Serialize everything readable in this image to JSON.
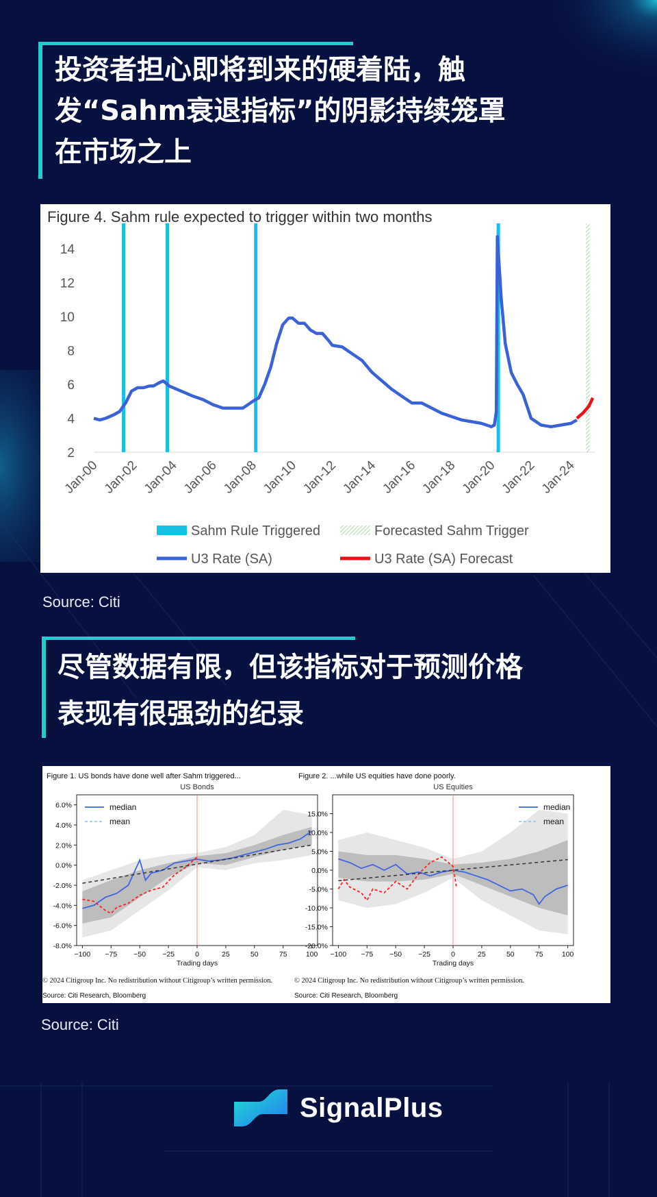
{
  "section1": {
    "title_lines": [
      "投资者担心即将到来的硬着陆，触",
      "发“Sahm衰退指标”的阴影持续笼罩",
      "在市场之上"
    ]
  },
  "section2": {
    "title_lines": [
      "尽管数据有限，但该指标对于预测价格",
      "表现有很强劲的纪录"
    ]
  },
  "source1": "Source: Citi",
  "source2": "Source: Citi",
  "brand": {
    "name": "SignalPlus"
  },
  "colors": {
    "background": "#071140",
    "accent": "#25c9d0",
    "u3": "#3a62d6",
    "forecast": "#e8101a",
    "trigger": "#19c0e6"
  },
  "chart_data": [
    {
      "type": "line",
      "title": "Figure 4. Sahm rule expected to trigger within two months",
      "ylim": [
        2,
        15
      ],
      "yticks": [
        2,
        4,
        6,
        8,
        10,
        12,
        14
      ],
      "xlim": [
        2000.0,
        2025.2
      ],
      "xticks": [
        "Jan-00",
        "Jan-02",
        "Jan-04",
        "Jan-06",
        "Jan-08",
        "Jan-10",
        "Jan-12",
        "Jan-14",
        "Jan-16",
        "Jan-18",
        "Jan-20",
        "Jan-22",
        "Jan-24"
      ],
      "sahm_triggered": [
        2001.5,
        2003.7,
        2008.15,
        2020.35
      ],
      "forecasted_trigger": 2024.85,
      "legend": {
        "triggered": "Sahm Rule Triggered",
        "forecast_trigger": "Forecasted Sahm Trigger",
        "u3": "U3 Rate (SA)",
        "u3_forecast": "U3 Rate (SA) Forecast"
      },
      "series": [
        {
          "name": "U3 Rate (SA)",
          "x": [
            2000.0,
            2000.3,
            2000.6,
            2001.0,
            2001.3,
            2001.6,
            2001.9,
            2002.2,
            2002.5,
            2002.8,
            2003.0,
            2003.3,
            2003.5,
            2003.8,
            2004.2,
            2004.6,
            2005.0,
            2005.5,
            2006.0,
            2006.5,
            2007.0,
            2007.5,
            2008.0,
            2008.3,
            2008.6,
            2008.9,
            2009.2,
            2009.5,
            2009.8,
            2010.0,
            2010.3,
            2010.6,
            2010.9,
            2011.2,
            2011.5,
            2011.8,
            2012.0,
            2012.5,
            2013.0,
            2013.5,
            2014.0,
            2014.5,
            2015.0,
            2015.5,
            2016.0,
            2016.5,
            2017.0,
            2017.5,
            2018.0,
            2018.5,
            2019.0,
            2019.5,
            2020.0,
            2020.15,
            2020.25,
            2020.3,
            2020.5,
            2020.7,
            2021.0,
            2021.3,
            2021.6,
            2022.0,
            2022.5,
            2023.0,
            2023.5,
            2024.0,
            2024.3
          ],
          "y": [
            4.0,
            3.9,
            4.0,
            4.2,
            4.4,
            4.9,
            5.6,
            5.8,
            5.8,
            5.9,
            5.9,
            6.1,
            6.2,
            5.9,
            5.7,
            5.5,
            5.3,
            5.1,
            4.8,
            4.6,
            4.6,
            4.6,
            5.0,
            5.2,
            6.0,
            7.0,
            8.4,
            9.5,
            9.9,
            9.9,
            9.6,
            9.6,
            9.2,
            9.0,
            9.0,
            8.6,
            8.3,
            8.2,
            7.8,
            7.4,
            6.7,
            6.2,
            5.7,
            5.3,
            4.9,
            4.9,
            4.6,
            4.3,
            4.1,
            3.9,
            3.8,
            3.7,
            3.5,
            3.6,
            4.4,
            14.7,
            11.0,
            8.4,
            6.7,
            6.0,
            5.4,
            4.0,
            3.6,
            3.5,
            3.6,
            3.7,
            3.9
          ]
        },
        {
          "name": "U3 Rate (SA) Forecast",
          "x": [
            2024.3,
            2024.6,
            2024.9,
            2025.1
          ],
          "y": [
            4.0,
            4.3,
            4.7,
            5.2
          ]
        }
      ]
    },
    {
      "type": "line",
      "title": "Figure 1. US bonds have done well after Sahm triggered...",
      "subtitle": "US Bonds",
      "xlabel": "Trading days",
      "xlim": [
        -105,
        105
      ],
      "ylim": [
        -8,
        7
      ],
      "xticks": [
        -100,
        -75,
        -50,
        -25,
        0,
        25,
        50,
        75,
        100
      ],
      "yticks": [
        "6.0%",
        "4.0%",
        "2.0%",
        "0.0%",
        "-2.0%",
        "-4.0%",
        "-6.0%",
        "-8.0%"
      ],
      "ytick_values": [
        6,
        4,
        2,
        0,
        -2,
        -4,
        -6,
        -8
      ],
      "legend": [
        "median",
        "mean"
      ],
      "copyright": "© 2024 Citigroup Inc. No redistribution without Citigroup’s written permission.",
      "source": "Source: Citi Research, Bloomberg",
      "series": [
        {
          "name": "median",
          "x": [
            -100,
            -90,
            -80,
            -70,
            -60,
            -50,
            -45,
            -40,
            -30,
            -20,
            -10,
            0,
            10,
            20,
            30,
            40,
            50,
            60,
            70,
            80,
            90,
            100
          ],
          "y": [
            -4.3,
            -4.0,
            -3.2,
            -2.8,
            -2.0,
            0.5,
            -1.5,
            -0.8,
            -0.5,
            0.2,
            0.4,
            0.6,
            0.4,
            0.5,
            0.7,
            1.0,
            1.3,
            1.6,
            2.0,
            2.2,
            2.6,
            3.4
          ]
        },
        {
          "name": "mean",
          "x": [
            -100,
            -90,
            -80,
            -75,
            -70,
            -60,
            -50,
            -40,
            -30,
            -20,
            -10,
            0
          ],
          "y": [
            -3.4,
            -3.6,
            -4.5,
            -4.8,
            -4.2,
            -3.8,
            -3.0,
            -2.5,
            -2.2,
            -1.0,
            -0.2,
            0.8
          ]
        },
        {
          "name": "trend",
          "x": [
            -100,
            100
          ],
          "y": [
            -1.8,
            2.0
          ]
        }
      ],
      "band_outer": {
        "x": [
          -100,
          -75,
          -50,
          -25,
          0,
          25,
          50,
          75,
          100
        ],
        "upper": [
          -1.5,
          -0.5,
          0.5,
          1.0,
          1.2,
          1.8,
          3.0,
          5.5,
          5.0
        ],
        "lower": [
          -7.2,
          -6.5,
          -4.5,
          -2.5,
          -0.2,
          -0.5,
          0.2,
          0.5,
          1.0
        ]
      },
      "band_inner": {
        "x": [
          -100,
          -75,
          -50,
          -25,
          0,
          25,
          50,
          75,
          100
        ],
        "upper": [
          -2.6,
          -1.5,
          -0.5,
          0.2,
          0.9,
          1.2,
          2.0,
          3.0,
          3.8
        ],
        "lower": [
          -5.8,
          -5.2,
          -3.2,
          -1.2,
          0.2,
          0.0,
          0.8,
          1.5,
          2.0
        ]
      }
    },
    {
      "type": "line",
      "title": "Figure 2. ...while US equities have done poorly.",
      "subtitle": "US Equities",
      "xlabel": "Trading days",
      "xlim": [
        -105,
        105
      ],
      "ylim": [
        -20,
        20
      ],
      "xticks": [
        -100,
        -75,
        -50,
        -25,
        0,
        25,
        50,
        75,
        100
      ],
      "yticks": [
        "15.0%",
        "10.0%",
        "5.0%",
        "0.0%",
        "-5.0%",
        "-10.0%",
        "-15.0%",
        "-20.0%"
      ],
      "ytick_values": [
        15,
        10,
        5,
        0,
        -5,
        -10,
        -15,
        -20
      ],
      "legend": [
        "median",
        "mean"
      ],
      "copyright": "© 2024 Citigroup Inc. No redistribution without Citigroup’s written permission.",
      "source": "Source: Citi Research, Bloomberg",
      "series": [
        {
          "name": "median",
          "x": [
            -100,
            -90,
            -80,
            -70,
            -60,
            -50,
            -40,
            -30,
            -20,
            -10,
            0,
            10,
            20,
            30,
            40,
            50,
            60,
            70,
            75,
            80,
            90,
            100
          ],
          "y": [
            3.0,
            2.0,
            0.5,
            1.5,
            0.0,
            1.5,
            -1.0,
            -0.5,
            -1.5,
            -0.5,
            0.0,
            -0.5,
            -1.5,
            -2.5,
            -4.0,
            -5.5,
            -5.0,
            -6.5,
            -9.0,
            -7.0,
            -5.0,
            -4.0
          ]
        },
        {
          "name": "mean",
          "x": [
            -100,
            -95,
            -90,
            -80,
            -75,
            -70,
            -60,
            -50,
            -40,
            -30,
            -20,
            -10,
            0,
            3
          ],
          "y": [
            -5.0,
            -2.5,
            -4.5,
            -6.0,
            -8.0,
            -5.0,
            -6.0,
            -3.0,
            -5.0,
            -1.0,
            2.0,
            3.5,
            1.0,
            -4.5
          ]
        },
        {
          "name": "trend",
          "x": [
            -100,
            100
          ],
          "y": [
            -2.8,
            2.8
          ]
        }
      ],
      "band_outer": {
        "x": [
          -100,
          -75,
          -50,
          -25,
          0,
          25,
          50,
          75,
          100
        ],
        "upper": [
          8.0,
          10.0,
          8.0,
          6.0,
          3.0,
          5.0,
          10.0,
          16.0,
          15.0
        ],
        "lower": [
          -8.0,
          -10.0,
          -9.0,
          -6.0,
          -2.0,
          -8.0,
          -12.0,
          -16.0,
          -17.0
        ]
      },
      "band_inner": {
        "x": [
          -100,
          -75,
          -50,
          -25,
          0,
          25,
          50,
          75,
          100
        ],
        "upper": [
          5.0,
          4.0,
          4.0,
          3.0,
          1.5,
          2.0,
          3.0,
          5.0,
          8.0
        ],
        "lower": [
          -2.0,
          -3.0,
          -3.0,
          -2.5,
          -1.0,
          -4.0,
          -7.0,
          -10.0,
          -12.0
        ]
      }
    }
  ]
}
